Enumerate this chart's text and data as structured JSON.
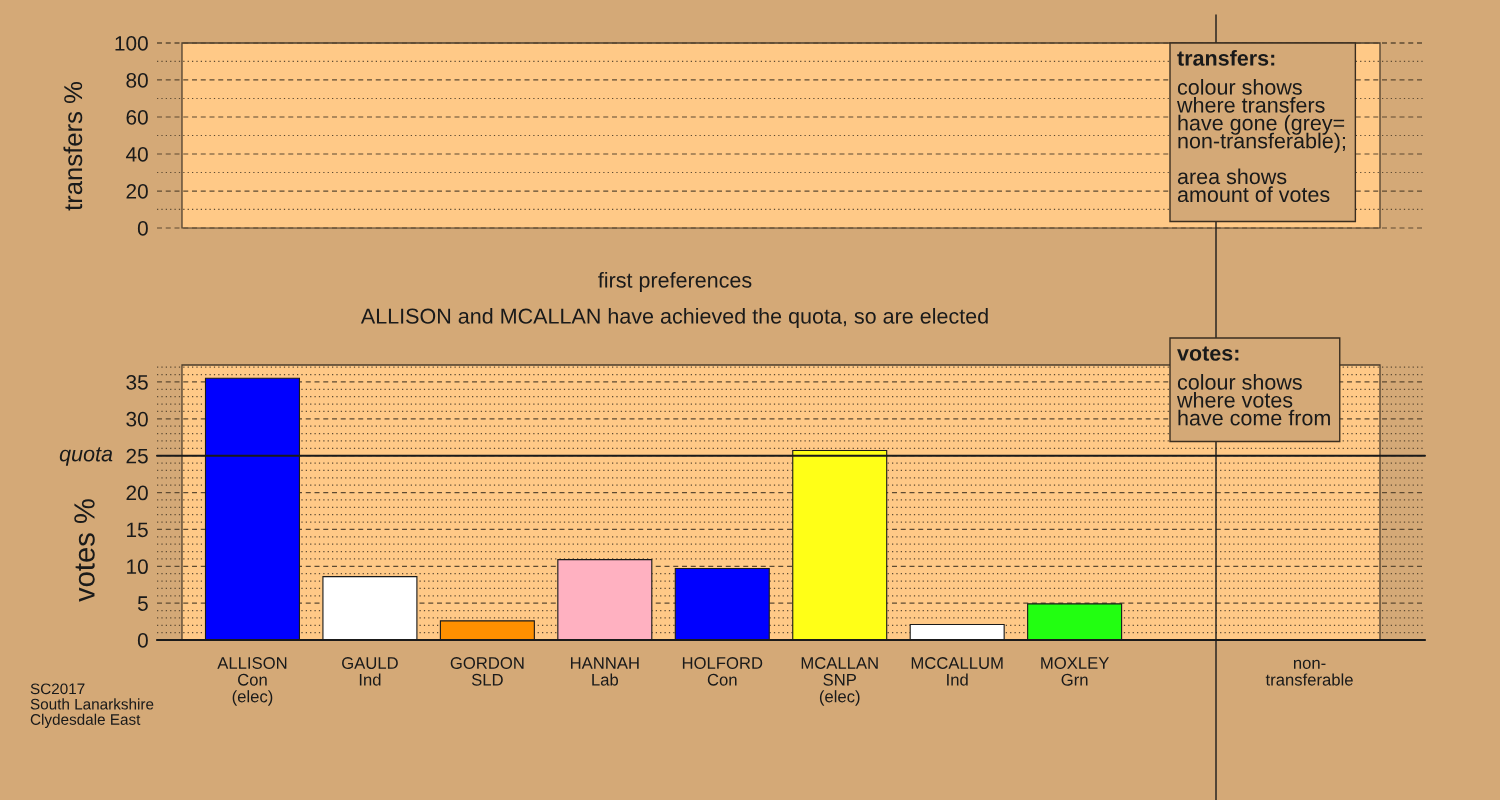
{
  "chart_data": [
    {
      "type": "bar",
      "ylabel": "transfers %",
      "categories": [
        null,
        null,
        null,
        null,
        null,
        null,
        null,
        null,
        null,
        null
      ],
      "values": [
        null,
        null,
        null,
        null,
        null,
        null,
        null,
        null,
        null,
        null
      ],
      "ylim": [
        0,
        100
      ],
      "yticks": [
        0,
        {
          "value": 10,
          "label": null
        },
        20,
        {
          "value": 30,
          "label": null
        },
        40,
        {
          "value": 50,
          "label": null
        },
        60,
        {
          "value": 70,
          "label": null
        },
        80,
        {
          "value": 90,
          "label": null
        },
        100
      ],
      "grid": "y",
      "annotations": [
        "transfers:\ncolour shows\nwhere transfers\nhave gone (grey=\nnon-transferable);\n\narea shows\namount of votes"
      ]
    },
    {
      "type": "bar",
      "title": "first preferences",
      "subtitle": "ALLISON and MCALLAN have achieved the quota, so are elected",
      "ylabel": "votes %",
      "categories": [
        "ALLISON\nCon\n(elec)",
        "GAULD\nInd",
        "GORDON\nSLD",
        "HANNAH\nLab",
        "HOLFORD\nCon",
        "MCALLAN\nSNP\n(elec)",
        "MCCALLUM\nInd",
        "MOXLEY\nGrn",
        null,
        "non-\ntransferable"
      ],
      "values": [
        35.5,
        8.6,
        2.6,
        10.9,
        9.7,
        25.7,
        2.1,
        4.9,
        null,
        null
      ],
      "colors": [
        "#0000ff",
        "#ffffff",
        "#ff9000",
        "#ffb1c1",
        "#0000ff",
        "#ffff17",
        "#ffffff",
        "#22ff11",
        null,
        null
      ],
      "ylim": [
        0,
        37.3
      ],
      "yticks": [
        0,
        {
          "value": 1,
          "label": null
        },
        {
          "value": 2,
          "label": null
        },
        {
          "value": 3,
          "label": null
        },
        {
          "value": 4,
          "label": null
        },
        5,
        {
          "value": 6,
          "label": null
        },
        {
          "value": 7,
          "label": null
        },
        {
          "value": 8,
          "label": null
        },
        {
          "value": 9,
          "label": null
        },
        10,
        {
          "value": 11,
          "label": null
        },
        {
          "value": 12,
          "label": null
        },
        {
          "value": 13,
          "label": null
        },
        {
          "value": 14,
          "label": null
        },
        15,
        {
          "value": 16,
          "label": null
        },
        {
          "value": 17,
          "label": null
        },
        {
          "value": 18,
          "label": null
        },
        {
          "value": 19,
          "label": null
        },
        20,
        {
          "value": 21,
          "label": null
        },
        {
          "value": 22,
          "label": null
        },
        {
          "value": 23,
          "label": null
        },
        {
          "value": 24,
          "label": null
        },
        25,
        {
          "value": 26,
          "label": null
        },
        {
          "value": 27,
          "label": null
        },
        {
          "value": 28,
          "label": null
        },
        {
          "value": 29,
          "label": null
        },
        30,
        {
          "value": 31,
          "label": null
        },
        {
          "value": 32,
          "label": null
        },
        {
          "value": 33,
          "label": null
        },
        {
          "value": 34,
          "label": null
        },
        35,
        {
          "value": 36,
          "label": null
        },
        {
          "value": 37,
          "label": null
        }
      ],
      "grid": "y",
      "ref_lines": [
        {
          "axis": "y",
          "value": 25,
          "label": "quota"
        }
      ],
      "annotations": [
        "votes:\ncolour shows\nwhere votes\nhave come from",
        "SC2017\nSouth Lanarkshire\nClydesdale East"
      ]
    }
  ]
}
